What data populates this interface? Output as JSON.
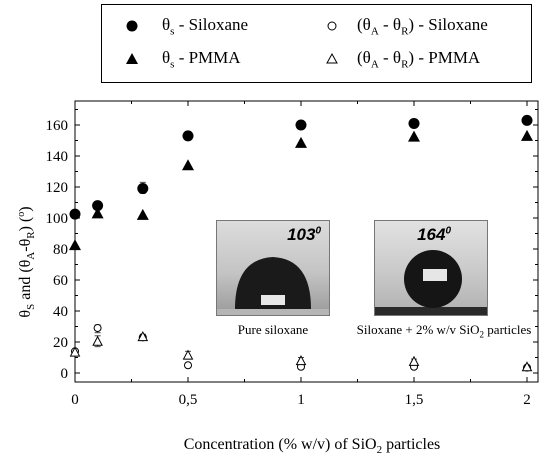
{
  "chart_data": {
    "type": "scatter",
    "xlabel": "Concentration (% w/v) of SiO2 particles",
    "ylabel": "θS and (θA-θR) (o)",
    "xlim": [
      0,
      2
    ],
    "ylim": [
      0,
      170
    ],
    "x_ticks": [
      "0",
      "0,5",
      "1",
      "1,5",
      "2"
    ],
    "y_ticks": [
      "0",
      "20",
      "40",
      "60",
      "80",
      "100",
      "120",
      "140",
      "160"
    ],
    "legend_position": "top",
    "series": [
      {
        "name": "θs - Siloxane",
        "marker": "filled-circle",
        "x": [
          0,
          0.1,
          0.3,
          0.5,
          1,
          1.5,
          2
        ],
        "y": [
          102.5,
          108,
          119,
          153,
          160,
          161,
          163
        ]
      },
      {
        "name": "θs - PMMA",
        "marker": "filled-triangle",
        "x": [
          0,
          0.1,
          0.3,
          0.5,
          1,
          1.5,
          2
        ],
        "y": [
          82.5,
          103,
          102,
          134,
          148.5,
          152.5,
          153
        ]
      },
      {
        "name": "(θA - θR) - Siloxane",
        "marker": "open-circle",
        "x": [
          0,
          0.1,
          0.3,
          0.5,
          1,
          1.5,
          2
        ],
        "y": [
          14,
          29,
          23,
          5,
          4,
          4,
          3.5
        ]
      },
      {
        "name": "(θA - θR) - PMMA",
        "marker": "open-triangle",
        "x": [
          0,
          0.1,
          0.3,
          0.5,
          1,
          1.5,
          2
        ],
        "y": [
          13.5,
          20.5,
          23.5,
          11.5,
          8,
          7.5,
          4
        ]
      }
    ],
    "error_bars": [
      {
        "series": 0,
        "x": 0.3,
        "low": 116,
        "high": 123
      },
      {
        "series": 2,
        "x": 0.1,
        "low": 26,
        "high": 31
      },
      {
        "series": 2,
        "x": 0.3,
        "low": 21,
        "high": 25
      },
      {
        "series": 3,
        "x": 0.1,
        "low": 17,
        "high": 24
      },
      {
        "series": 3,
        "x": 0.5,
        "low": 9,
        "high": 14
      },
      {
        "series": 3,
        "x": 1,
        "low": 6,
        "high": 10
      },
      {
        "series": 3,
        "x": 1.5,
        "low": 5,
        "high": 9
      }
    ]
  },
  "legend": {
    "items": [
      {
        "theta": "θ",
        "sub": "s",
        "text": " - Siloxane"
      },
      {
        "open": "(θ",
        "sub1": "A",
        "mid": " - θ",
        "sub2": "R",
        "text": ") - Siloxane"
      },
      {
        "theta": "θ",
        "sub": "s",
        "text": " - PMMA"
      },
      {
        "open": "(θ",
        "sub1": "A",
        "mid": " - θ",
        "sub2": "R",
        "text": ") - PMMA"
      }
    ]
  },
  "axis_text": {
    "x_prefix": "Concentration (% w/v) of SiO",
    "x_sub": "2",
    "x_suffix": " particles",
    "y_theta1": "θ",
    "y_sub_s": "S",
    "y_and": " and (θ",
    "y_sub_a": "A",
    "y_minus": "-θ",
    "y_sub_r": "R",
    "y_close": ") (",
    "y_sup": "o",
    "y_end": ")"
  },
  "insets": [
    {
      "angle": "103",
      "angle_sup": "0",
      "caption": "Pure siloxane"
    },
    {
      "angle": "164",
      "angle_sup": "0",
      "caption_prefix": "Siloxane + 2% w/v SiO",
      "caption_sub": "2",
      "caption_suffix": " particles"
    }
  ]
}
